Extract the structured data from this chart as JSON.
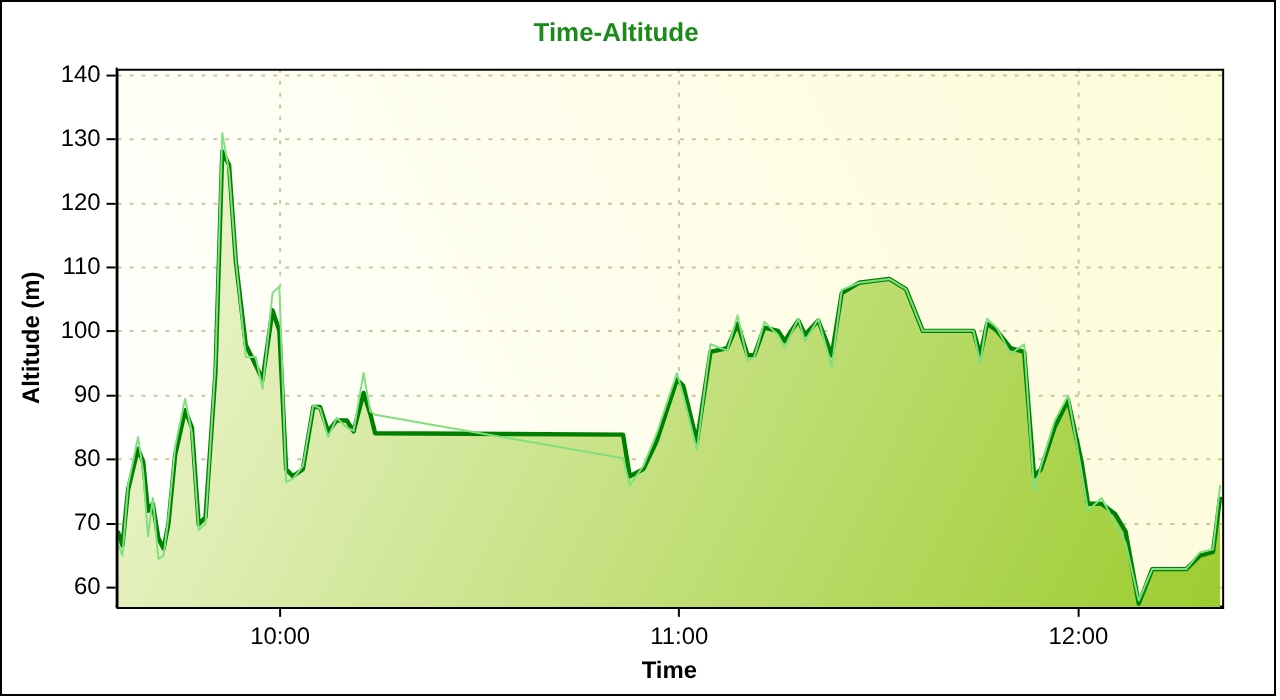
{
  "chart_data": {
    "type": "area",
    "title": "Time-Altitude",
    "xlabel": "Time",
    "ylabel": "Altitude (m)",
    "xlim": [
      9.59,
      12.36
    ],
    "xticks": [
      {
        "value": 10,
        "label": "10:00"
      },
      {
        "value": 11,
        "label": "11:00"
      },
      {
        "value": 12,
        "label": "12:00"
      }
    ],
    "ylim": [
      57,
      141
    ],
    "yticks": [
      60,
      70,
      80,
      90,
      100,
      110,
      120,
      130,
      140
    ],
    "grid": true,
    "legend": false,
    "marker": "none",
    "series": [
      {
        "color": "#008000",
        "x": [
          9.593,
          9.605,
          9.619,
          9.644,
          9.657,
          9.669,
          9.681,
          9.695,
          9.708,
          9.72,
          9.737,
          9.762,
          9.779,
          9.796,
          9.813,
          9.838,
          9.855,
          9.872,
          9.889,
          9.914,
          9.939,
          9.956,
          9.981,
          9.998,
          10.015,
          10.032,
          10.057,
          10.083,
          10.1,
          10.12,
          10.142,
          10.167,
          10.184,
          10.209,
          10.226,
          10.238,
          10.859,
          10.876,
          10.91,
          10.943,
          10.994,
          11.01,
          11.044,
          11.078,
          11.12,
          11.146,
          11.171,
          11.188,
          11.213,
          11.247,
          11.264,
          11.298,
          11.315,
          11.348,
          11.382,
          11.407,
          11.45,
          11.526,
          11.568,
          11.61,
          11.737,
          11.754,
          11.771,
          11.796,
          11.83,
          11.864,
          11.889,
          11.906,
          11.94,
          11.974,
          12.008,
          12.024,
          12.058,
          12.092,
          12.118,
          12.151,
          12.185,
          12.27,
          12.304,
          12.337,
          12.355
        ],
        "values": [
          68.8,
          66.6,
          75.3,
          81.7,
          79.6,
          72,
          73.1,
          67.7,
          66.1,
          69.9,
          80.7,
          87.7,
          85,
          69.9,
          71,
          93.6,
          128.1,
          126,
          110.9,
          97.9,
          94.7,
          92.5,
          103.3,
          100.1,
          78.5,
          77.4,
          78.5,
          88.2,
          88.2,
          84.4,
          86.1,
          86.1,
          84.4,
          90.4,
          87.1,
          84.1,
          83.9,
          77.4,
          78.5,
          82.8,
          92.5,
          91.5,
          82.8,
          96.8,
          97.4,
          101.2,
          96.3,
          96.3,
          100.6,
          100.1,
          98.5,
          101.7,
          99.5,
          101.7,
          96.3,
          106,
          107.6,
          108.2,
          106.6,
          100.1,
          100.1,
          96.3,
          101.2,
          100.1,
          97.4,
          96.8,
          77.4,
          78.5,
          85,
          89.3,
          79.6,
          73.1,
          73.1,
          71.5,
          68.8,
          57.5,
          62.9,
          62.9,
          65,
          65.6,
          74.2
        ]
      },
      {
        "type": "line",
        "color": "#80e080",
        "x": [
          9.593,
          9.605,
          9.619,
          9.644,
          9.657,
          9.669,
          9.681,
          9.695,
          9.708,
          9.72,
          9.737,
          9.762,
          9.779,
          9.796,
          9.813,
          9.838,
          9.855,
          9.872,
          9.889,
          9.914,
          9.939,
          9.956,
          9.981,
          9.998,
          10.015,
          10.032,
          10.057,
          10.083,
          10.1,
          10.12,
          10.142,
          10.167,
          10.184,
          10.209,
          10.226,
          10.238,
          10.859,
          10.876,
          10.91,
          10.943,
          10.994,
          11.01,
          11.044,
          11.078,
          11.12,
          11.146,
          11.171,
          11.188,
          11.213,
          11.247,
          11.264,
          11.298,
          11.315,
          11.348,
          11.382,
          11.407,
          11.45,
          11.526,
          11.568,
          11.61,
          11.737,
          11.754,
          11.771,
          11.796,
          11.83,
          11.864,
          11.889,
          11.906,
          11.94,
          11.974,
          12.008,
          12.024,
          12.058,
          12.092,
          12.118,
          12.151,
          12.185,
          12.27,
          12.304,
          12.337,
          12.355
        ],
        "values": [
          67,
          65,
          76,
          83.5,
          78,
          68,
          74,
          64.5,
          65,
          71,
          82,
          89.5,
          84,
          69,
          70,
          95,
          131,
          125,
          111,
          96,
          96,
          91,
          106,
          107,
          76.5,
          77,
          79,
          88.5,
          88,
          83.5,
          86.5,
          85,
          84.5,
          93.5,
          87.5,
          87,
          80.2,
          76,
          79,
          84,
          93.5,
          90,
          81.5,
          98,
          97,
          102.5,
          95.5,
          96,
          101.5,
          99.5,
          97.5,
          102,
          98.5,
          102,
          94.5,
          106.5,
          107.6,
          108.2,
          106.6,
          100.1,
          100.1,
          95,
          102,
          100.5,
          96.5,
          98,
          75,
          79,
          86,
          90,
          78,
          72,
          74,
          70,
          67,
          58,
          62.9,
          62.9,
          65.5,
          66,
          76
        ]
      }
    ]
  }
}
